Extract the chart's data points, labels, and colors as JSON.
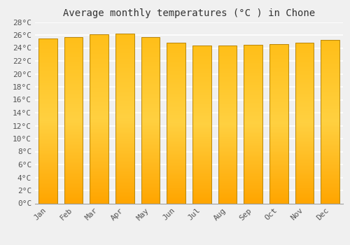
{
  "title": "Average monthly temperatures (°C ) in Chone",
  "months": [
    "Jan",
    "Feb",
    "Mar",
    "Apr",
    "May",
    "Jun",
    "Jul",
    "Aug",
    "Sep",
    "Oct",
    "Nov",
    "Dec"
  ],
  "values": [
    25.5,
    25.7,
    26.1,
    26.2,
    25.7,
    24.8,
    24.4,
    24.4,
    24.5,
    24.6,
    24.8,
    25.2
  ],
  "bar_color_bottom": "#FFA500",
  "bar_color_mid": "#FFD040",
  "bar_color_top": "#FFBE18",
  "bar_edge_color": "#B8860B",
  "ylim": [
    0,
    28
  ],
  "ytick_step": 2,
  "background_color": "#f0f0f0",
  "grid_color": "#ffffff",
  "title_fontsize": 10,
  "tick_fontsize": 8,
  "font_family": "monospace"
}
